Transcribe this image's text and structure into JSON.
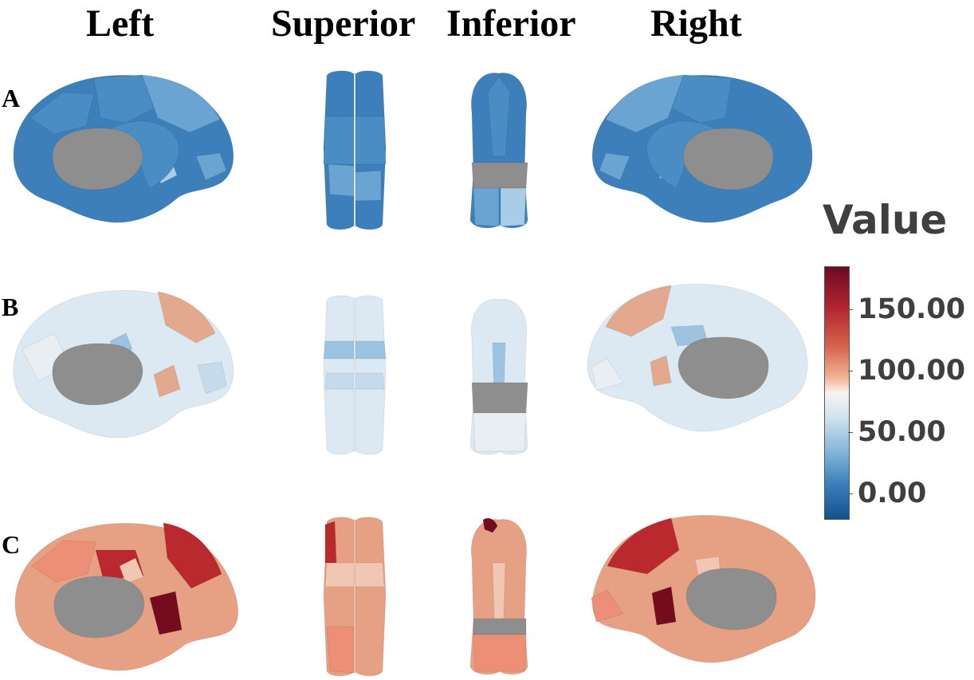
{
  "columns": [
    "Left",
    "Superior",
    "Inferior",
    "Right"
  ],
  "rows": [
    "A",
    "B",
    "C"
  ],
  "legend": {
    "title": "Value",
    "ticks": [
      "150.00",
      "100.00",
      "50.00",
      "0.00"
    ],
    "tick_values": [
      150,
      100,
      50,
      0
    ],
    "range": [
      -20,
      185
    ],
    "colormap": [
      "#16508e",
      "#3a80bd",
      "#7fb3d7",
      "#cfe2ef",
      "#f8f3f0",
      "#f1b596",
      "#d8664f",
      "#b2242f",
      "#6c0a23"
    ]
  },
  "panels": {
    "A": {
      "base": "#3c7fbb",
      "mid": "#4a8cc4",
      "light": "#6aa4d2",
      "accent": "#a9cde6",
      "hi": "#e4eef6"
    },
    "B": {
      "base": "#dde9f2",
      "mid": "#c5dbeb",
      "light": "#e9eef3",
      "accent": "#e2a98e",
      "hi": "#9cc3e2"
    },
    "C": {
      "base": "#e6a084",
      "mid": "#ec8f76",
      "light": "#f1c7b4",
      "accent": "#b9292e",
      "hi": "#740b1f"
    },
    "gray": "#8e8e8e"
  }
}
